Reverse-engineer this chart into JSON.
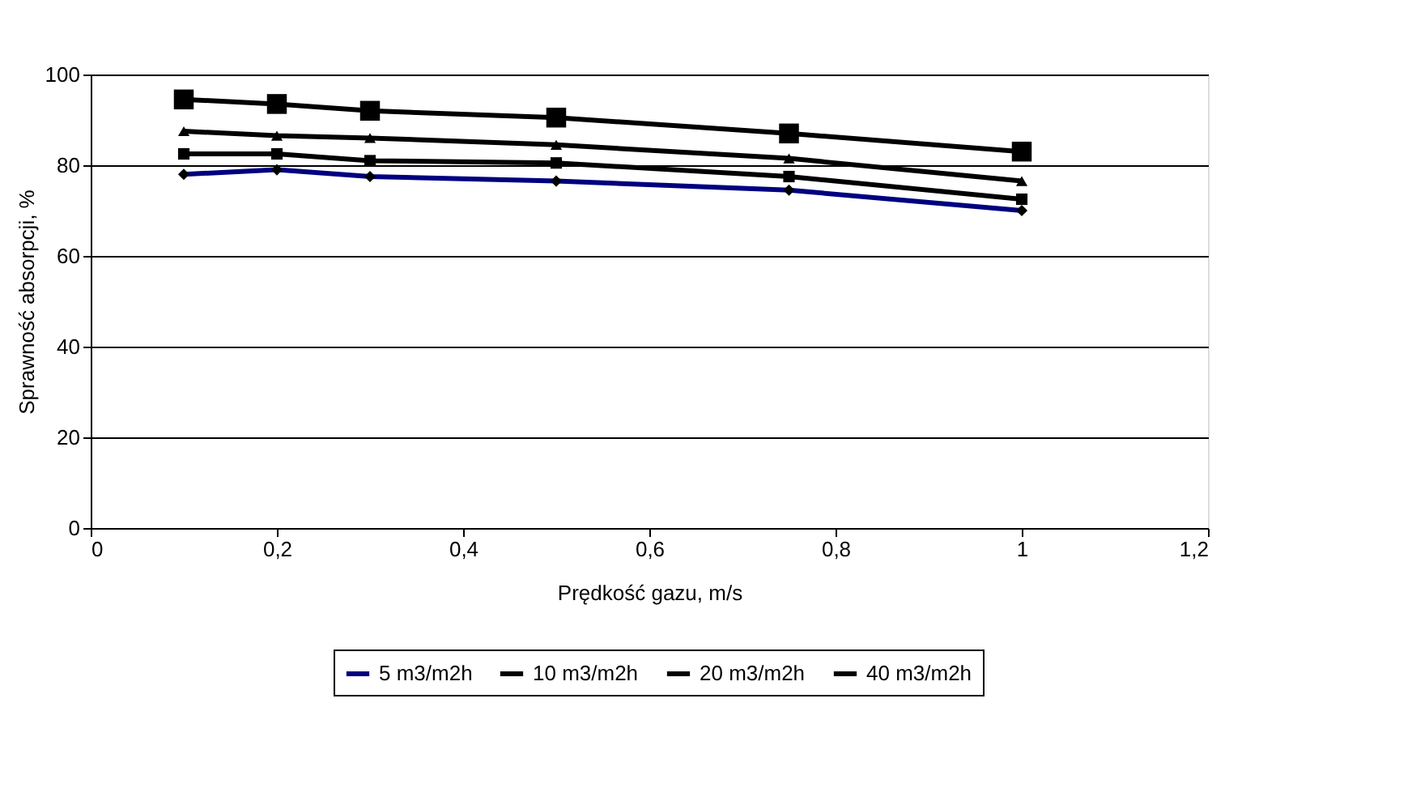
{
  "chart_data": {
    "type": "line",
    "xlabel": "Prędkość gazu, m/s",
    "ylabel": "Sprawność absorpcji, %",
    "x": [
      0.1,
      0.2,
      0.3,
      0.5,
      0.75,
      1
    ],
    "xlim": [
      0,
      1.2
    ],
    "xticks": [
      {
        "value": 0,
        "label": "0"
      },
      {
        "value": 0.2,
        "label": "0,2"
      },
      {
        "value": 0.4,
        "label": "0,4"
      },
      {
        "value": 0.6,
        "label": "0,6"
      },
      {
        "value": 0.8,
        "label": "0,8"
      },
      {
        "value": 1,
        "label": "1"
      },
      {
        "value": 1.2,
        "label": "1,2"
      }
    ],
    "ylim": [
      0,
      100
    ],
    "yticks": [
      0,
      20,
      40,
      60,
      80,
      100
    ],
    "grid": "y",
    "legend": "bottom",
    "series": [
      {
        "name": "5 m3/m2h",
        "color": "#000080",
        "marker": "diamond",
        "values": [
          78,
          79,
          77.5,
          76.5,
          74.5,
          70
        ]
      },
      {
        "name": "10 m3/m2h",
        "color": "#000000",
        "marker": "square",
        "values": [
          82.5,
          82.5,
          81,
          80.5,
          77.5,
          72.5
        ]
      },
      {
        "name": "20 m3/m2h",
        "color": "#000000",
        "marker": "triangle",
        "values": [
          87.5,
          86.5,
          86,
          84.5,
          81.5,
          76.5
        ]
      },
      {
        "name": "40 m3/m2h",
        "color": "#000000",
        "marker": "square",
        "values": [
          94.5,
          93.5,
          92,
          90.5,
          87,
          83
        ]
      }
    ]
  }
}
